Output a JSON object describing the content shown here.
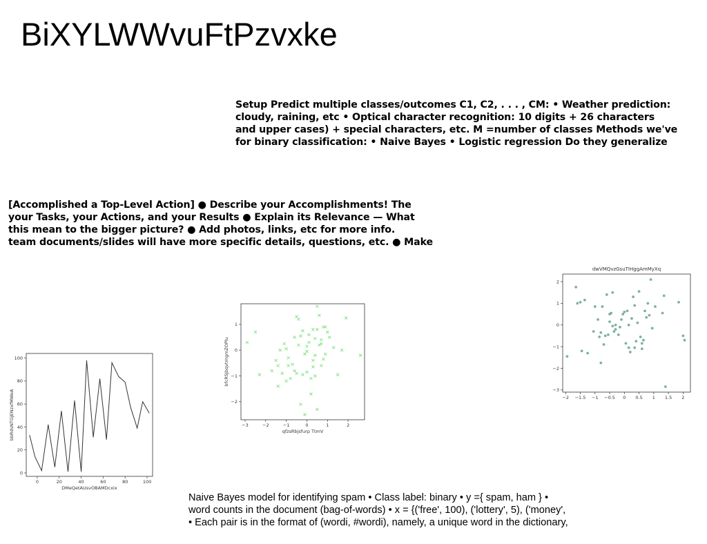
{
  "slide": {
    "title": "BiXYLWWvuFtPzvxke",
    "setup_lines": [
      "Setup Predict multiple classes/outcomes C1, C2, . . . , CM: • Weather prediction:",
      "cloudy, raining, etc • Optical character recognition: 10 digits + 26 characters",
      "and upper cases) + special characters, etc. M =number of classes Methods we've",
      "for binary classification: • Naive Bayes • Logistic regression Do they generalize"
    ],
    "accomplishment_lines": [
      "[Accomplished a Top-Level Action] ● Describe your Accomplishments! The",
      "your Tasks, your Actions, and your Results ● Explain its Relevance — What",
      "this mean to the bigger picture? ● Add photos, links, etc for more info.",
      "team documents/slides will have more specific details, questions, etc. ● Make"
    ],
    "naive_bayes_lines": [
      "Naive Bayes model for identifying spam • Class label: binary • y ={ spam, ham } •",
      "word counts in the document (bag-of-words) • x = {('free', 100), ('lottery', 5), ('money',",
      "• Each pair is in the format of (wordi, #wordi), namely, a unique word in the dictionary,"
    ]
  },
  "chart_data": [
    {
      "type": "line",
      "title": "",
      "xlabel": "DMeQetAUsvOBAMDcxix",
      "ylabel": "bbRdsNTGjENzxfMWeA",
      "xlim": [
        -10,
        105
      ],
      "ylim": [
        -3,
        104
      ],
      "xticks": [
        0,
        20,
        40,
        60,
        80,
        100
      ],
      "yticks": [
        0,
        20,
        40,
        60,
        80,
        100
      ],
      "grid": false,
      "color": "#333333",
      "x": [
        -7,
        -2,
        4,
        10,
        16,
        22,
        28,
        34,
        40,
        45,
        51,
        57,
        63,
        68,
        74,
        80,
        85,
        91,
        96,
        102
      ],
      "y": [
        33,
        14,
        2,
        42,
        5,
        54,
        1,
        63,
        1,
        98,
        31,
        82,
        29,
        96,
        84,
        79,
        57,
        39,
        62,
        52
      ]
    },
    {
      "type": "scatter",
      "title": "",
      "xlabel": "qfzsRbjsfurp TtmV",
      "ylabel": "bfcRSJbqvtmgmZOPlu",
      "xlim": [
        -3.2,
        2.8
      ],
      "ylim": [
        -2.7,
        1.8
      ],
      "xticks": [
        -3,
        -2,
        -1,
        0,
        1,
        2
      ],
      "yticks": [
        -2,
        -1,
        0,
        1
      ],
      "grid": false,
      "marker": "x",
      "color": "#77dd77",
      "x": [
        -2.9,
        -2.3,
        -2.5,
        -1.7,
        -1.5,
        -1.4,
        -1.3,
        -1.2,
        -1.1,
        -1.0,
        -1.0,
        -0.9,
        -0.8,
        -0.7,
        -0.6,
        -0.5,
        -0.4,
        -0.4,
        -0.3,
        -0.3,
        -0.2,
        -0.2,
        -0.1,
        0.0,
        0.0,
        0.0,
        0.1,
        0.1,
        0.2,
        0.2,
        0.3,
        0.3,
        0.4,
        0.4,
        0.5,
        0.5,
        0.5,
        0.6,
        0.6,
        0.7,
        0.7,
        0.8,
        0.8,
        0.9,
        1.0,
        1.1,
        1.3,
        1.5,
        1.7,
        1.9,
        2.6,
        -1.4,
        -0.6,
        -0.1,
        0.4,
        0.7,
        0.3,
        -0.9,
        -0.5,
        0.9
      ],
      "y": [
        0.3,
        -0.95,
        0.7,
        -0.8,
        -0.4,
        -1.4,
        0.0,
        -0.9,
        0.25,
        0.05,
        -1.2,
        -0.6,
        -1.1,
        -0.55,
        -0.8,
        -0.9,
        1.2,
        0.2,
        -2.1,
        0.55,
        0.75,
        -0.95,
        -2.5,
        -0.05,
        0.15,
        -0.85,
        0.3,
        0.6,
        -1.1,
        -1.7,
        0.8,
        -0.4,
        0.45,
        -0.2,
        1.7,
        -2.3,
        0.8,
        1.35,
        0.2,
        -0.6,
        0.4,
        -0.35,
        0.9,
        -0.15,
        0.7,
        0.5,
        0.1,
        -0.95,
        0.0,
        1.25,
        -0.2,
        -0.6,
        0.5,
        -0.15,
        -1.0,
        0.25,
        -0.65,
        -0.3,
        1.3,
        0.9
      ]
    },
    {
      "type": "scatter",
      "title": "dwVMQvzGsuTIHggAmMyXq",
      "xlabel": "",
      "ylabel": "",
      "xlim": [
        -2.1,
        2.25
      ],
      "ylim": [
        -3.1,
        2.35
      ],
      "xticks": [
        -2.0,
        -1.5,
        -1.0,
        -0.5,
        0.0,
        0.5,
        1.0,
        1.5,
        2.0
      ],
      "yticks": [
        -3,
        -2,
        -1,
        0,
        1,
        2
      ],
      "grid": false,
      "marker": "o",
      "color": "#5f9e86",
      "x": [
        -1.95,
        -1.65,
        -1.6,
        -1.5,
        -1.45,
        -1.35,
        -1.25,
        -1.05,
        -1.0,
        -0.9,
        -0.85,
        -0.8,
        -0.8,
        -0.75,
        -0.7,
        -0.65,
        -0.6,
        -0.5,
        -0.5,
        -0.45,
        -0.4,
        -0.4,
        -0.35,
        -0.3,
        -0.3,
        -0.2,
        -0.1,
        -0.05,
        0.0,
        0.05,
        0.1,
        0.15,
        0.2,
        0.25,
        0.3,
        0.35,
        0.4,
        0.45,
        0.5,
        0.55,
        0.6,
        0.65,
        0.7,
        0.75,
        0.8,
        0.9,
        0.95,
        1.05,
        1.3,
        1.35,
        1.4,
        1.85,
        2.0,
        2.05,
        -0.55,
        0.15,
        0.6,
        -0.15,
        0.35,
        0.85
      ],
      "y": [
        -1.45,
        1.75,
        1.0,
        1.05,
        -1.2,
        1.15,
        -1.3,
        -0.3,
        0.85,
        0.25,
        -0.55,
        -1.75,
        -0.35,
        0.85,
        -0.9,
        -0.5,
        1.4,
        0.15,
        0.5,
        0.55,
        -0.05,
        1.5,
        -0.3,
        -0.2,
        0.0,
        -0.45,
        0.25,
        0.5,
        0.6,
        -0.85,
        0.65,
        -1.05,
        -1.25,
        0.3,
        1.3,
        0.9,
        -0.75,
        0.1,
        1.55,
        -0.55,
        -1.1,
        -0.7,
        0.65,
        0.35,
        1.0,
        2.1,
        -0.15,
        0.85,
        0.55,
        1.35,
        -2.85,
        1.05,
        -0.5,
        -0.7,
        -0.45,
        0.0,
        -0.85,
        -0.1,
        -1.05,
        0.45
      ]
    }
  ]
}
